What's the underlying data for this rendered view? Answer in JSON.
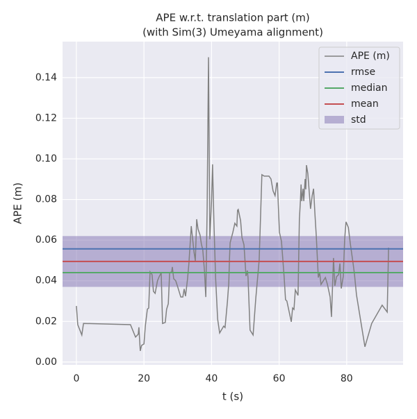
{
  "chart_data": {
    "type": "line",
    "title": "APE w.r.t. translation part (m)",
    "subtitle": "(with Sim(3) Umeyama alignment)",
    "xlabel": "t (s)",
    "ylabel": "APE (m)",
    "x": [
      0,
      0.4,
      1.6,
      2.1,
      16,
      17.5,
      18.3,
      18.5,
      18.9,
      19.3,
      20,
      20.4,
      21,
      21.4,
      21.8,
      22.4,
      22.8,
      23.3,
      24,
      24.5,
      25.1,
      25.5,
      26.3,
      26.7,
      27.2,
      27.6,
      28.2,
      28.4,
      28.8,
      29.4,
      30,
      30.9,
      31.5,
      31.9,
      32.3,
      32.9,
      33.3,
      34,
      34.8,
      35.2,
      35.6,
      36,
      36.6,
      37,
      37.4,
      37.9,
      38.3,
      38.7,
      39.1,
      39.5,
      40,
      40.3,
      40.7,
      41.2,
      41.8,
      42.4,
      43.6,
      44,
      44.7,
      45.1,
      45.3,
      45.5,
      46.3,
      46.9,
      47.5,
      47.7,
      47.9,
      48.6,
      49,
      49.6,
      49.8,
      50.2,
      50.6,
      50.8,
      51.4,
      52.3,
      53.1,
      54.1,
      54.9,
      55.6,
      57,
      57.6,
      58.2,
      58.8,
      59.3,
      59.5,
      60.1,
      60.7,
      61.5,
      61.9,
      62.3,
      63.6,
      64,
      64.4,
      64.8,
      65.6,
      66,
      66.3,
      66.5,
      66.7,
      67.1,
      67.3,
      67.7,
      67.9,
      68.1,
      68.5,
      69,
      69.3,
      69.8,
      70.2,
      70.6,
      71,
      71.6,
      72,
      72.4,
      73.7,
      74.3,
      75.1,
      75.5,
      76.1,
      76.5,
      77,
      77.6,
      78,
      78.4,
      79,
      79.4,
      79.8,
      80.5,
      81.1,
      81.9,
      82.3,
      82.9,
      84.4,
      85.4,
      87.4,
      90.5,
      92,
      92.4
    ],
    "series": [
      {
        "name": "APE (m)",
        "color": "#808080",
        "values": [
          0.0276,
          0.0184,
          0.0133,
          0.019,
          0.0184,
          0.0123,
          0.0137,
          0.0171,
          0.0055,
          0.0082,
          0.0089,
          0.0177,
          0.026,
          0.0266,
          0.0444,
          0.043,
          0.0348,
          0.0338,
          0.04,
          0.042,
          0.044,
          0.019,
          0.0195,
          0.026,
          0.0287,
          0.044,
          0.0444,
          0.0468,
          0.041,
          0.04,
          0.0369,
          0.032,
          0.032,
          0.036,
          0.0324,
          0.041,
          0.0485,
          0.0669,
          0.0543,
          0.0498,
          0.0703,
          0.0655,
          0.0625,
          0.058,
          0.0553,
          0.045,
          0.032,
          0.0758,
          0.15,
          0.0604,
          0.0792,
          0.0973,
          0.069,
          0.0416,
          0.0212,
          0.0143,
          0.0177,
          0.017,
          0.0297,
          0.0389,
          0.0502,
          0.0587,
          0.0638,
          0.0683,
          0.0669,
          0.0747,
          0.0751,
          0.0696,
          0.0614,
          0.0577,
          0.0526,
          0.0423,
          0.045,
          0.0416,
          0.0157,
          0.0133,
          0.0314,
          0.0502,
          0.0922,
          0.0915,
          0.0915,
          0.0901,
          0.0843,
          0.0819,
          0.0881,
          0.0881,
          0.0638,
          0.0594,
          0.0416,
          0.0307,
          0.03,
          0.0198,
          0.0266,
          0.0259,
          0.0355,
          0.0328,
          0.0703,
          0.0792,
          0.0874,
          0.0792,
          0.0853,
          0.0792,
          0.0901,
          0.085,
          0.0969,
          0.0928,
          0.0819,
          0.0754,
          0.0819,
          0.0853,
          0.073,
          0.0621,
          0.0416,
          0.044,
          0.0382,
          0.0416,
          0.0382,
          0.032,
          0.0222,
          0.0512,
          0.0375,
          0.042,
          0.043,
          0.0485,
          0.0362,
          0.0423,
          0.0604,
          0.069,
          0.0662,
          0.058,
          0.0485,
          0.0433,
          0.0331,
          0.0177,
          0.0075,
          0.019,
          0.028,
          0.0246,
          0.0563
        ]
      }
    ],
    "stats": [
      {
        "name": "rmse",
        "color": "#4c72b0",
        "value": 0.0557
      },
      {
        "name": "median",
        "color": "#55a868",
        "value": 0.044
      },
      {
        "name": "mean",
        "color": "#c44e52",
        "value": 0.0495
      }
    ],
    "std": {
      "name": "std",
      "color": "#8172b2",
      "value": 0.0125
    },
    "xlim": [
      -4.1,
      96.7
    ],
    "ylim": [
      -0.0014,
      0.1577
    ],
    "xticks": [
      0,
      20,
      40,
      60,
      80
    ],
    "yticks": [
      {
        "value": 0,
        "label": "0.00"
      },
      {
        "value": 0.02,
        "label": "0.02"
      },
      {
        "value": 0.04,
        "label": "0.04"
      },
      {
        "value": 0.06,
        "label": "0.06"
      },
      {
        "value": 0.08,
        "label": "0.08"
      },
      {
        "value": 0.1,
        "label": "0.10"
      },
      {
        "value": 0.12,
        "label": "0.12"
      },
      {
        "value": 0.14,
        "label": "0.14"
      }
    ],
    "grid": true
  }
}
